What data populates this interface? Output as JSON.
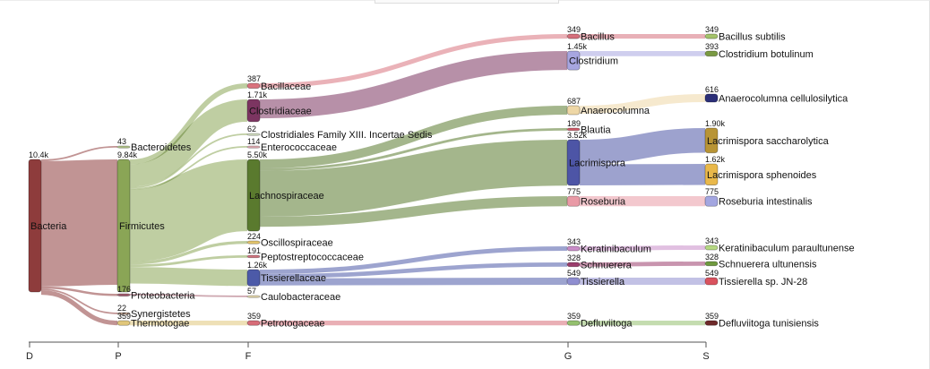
{
  "axis": {
    "ranks": [
      {
        "key": "D",
        "label": "D"
      },
      {
        "key": "P",
        "label": "P"
      },
      {
        "key": "F",
        "label": "F"
      },
      {
        "key": "G",
        "label": "G"
      },
      {
        "key": "S",
        "label": "S"
      }
    ]
  },
  "colors": {
    "Bacteria": "#8e3c3c",
    "Firmicutes": "#8aa556",
    "Bacteroidetes": "#b6c98d",
    "Proteobacteria": "#a45c6e",
    "Synergistetes": "#d9b8a4",
    "Thermotogae": "#e0c67a",
    "Bacillaceae": "#d9727d",
    "Clostridiaceae": "#7c3561",
    "ClostridialesXIII": "#d8e4c6",
    "Enterococcaceae": "#e7b0b6",
    "Lachnospiraceae": "#5a7a2e",
    "Oscillospiraceae": "#e3c56c",
    "Peptostreptococcaceae": "#d0747f",
    "Tissierellaceae": "#4c5aa8",
    "Caulobacteraceae": "#e8dbb0",
    "Petrotogaceae": "#d76d78",
    "Bacillus": "#d56f7b",
    "Clostridium": "#a7a6e0",
    "Anaerocolumna": "#eed7a6",
    "Blautia": "#cf5b69",
    "Lacrimispora": "#4d55a6",
    "Roseburia": "#e99aa6",
    "Keratinibaculum": "#c98cc8",
    "Schnuerera": "#9b3d6c",
    "Tissierella": "#8f8ed0",
    "Defluviitoga": "#94c06e",
    "Bacillus subtilis": "#a4c36a",
    "Clostridium botulinum": "#7a9a43",
    "Anaerocolumna cellulosilytica": "#2b2f78",
    "Lacrimispora saccharolytica": "#b89435",
    "Lacrimispora sphenoides": "#e9b84a",
    "Roseburia intestinalis": "#a3a6e0",
    "Keratinibaculum paraultunense": "#b6d883",
    "Schnuerera ultunensis": "#6f9a3e",
    "Tissierella sp. JN-28": "#d9525e",
    "Defluviitoga tunisiensis": "#6e2a2a"
  },
  "nodes": [
    {
      "id": "Bacteria",
      "label": "Bacteria",
      "value": "10.4k",
      "rank": "D"
    },
    {
      "id": "Bacteroidetes",
      "label": "Bacteroidetes",
      "value": "43",
      "rank": "P"
    },
    {
      "id": "Firmicutes",
      "label": "Firmicutes",
      "value": "9.84k",
      "rank": "P"
    },
    {
      "id": "Proteobacteria",
      "label": "Proteobacteria",
      "value": "176",
      "rank": "P"
    },
    {
      "id": "Synergistetes",
      "label": "Synergistetes",
      "value": "22",
      "rank": "P"
    },
    {
      "id": "Thermotogae",
      "label": "Thermotogae",
      "value": "359",
      "rank": "P"
    },
    {
      "id": "Bacillaceae",
      "label": "Bacillaceae",
      "value": "387",
      "rank": "F"
    },
    {
      "id": "Clostridiaceae",
      "label": "Clostridiaceae",
      "value": "1.71k",
      "rank": "F"
    },
    {
      "id": "ClostridialesXIII",
      "label": "Clostridiales Family XIII. Incertae Sedis",
      "value": "62",
      "rank": "F"
    },
    {
      "id": "Enterococcaceae",
      "label": "Enterococcaceae",
      "value": "114",
      "rank": "F"
    },
    {
      "id": "Lachnospiraceae",
      "label": "Lachnospiraceae",
      "value": "5.50k",
      "rank": "F"
    },
    {
      "id": "Oscillospiraceae",
      "label": "Oscillospiraceae",
      "value": "224",
      "rank": "F"
    },
    {
      "id": "Peptostreptococcaceae",
      "label": "Peptostreptococcaceae",
      "value": "191",
      "rank": "F"
    },
    {
      "id": "Tissierellaceae",
      "label": "Tissierellaceae",
      "value": "1.26k",
      "rank": "F"
    },
    {
      "id": "Caulobacteraceae",
      "label": "Caulobacteraceae",
      "value": "57",
      "rank": "F"
    },
    {
      "id": "Petrotogaceae",
      "label": "Petrotogaceae",
      "value": "359",
      "rank": "F"
    },
    {
      "id": "Bacillus",
      "label": "Bacillus",
      "value": "349",
      "rank": "G"
    },
    {
      "id": "Clostridium",
      "label": "Clostridium",
      "value": "1.45k",
      "rank": "G"
    },
    {
      "id": "Anaerocolumna",
      "label": "Anaerocolumna",
      "value": "687",
      "rank": "G"
    },
    {
      "id": "Blautia",
      "label": "Blautia",
      "value": "189",
      "rank": "G"
    },
    {
      "id": "Lacrimispora",
      "label": "Lacrimispora",
      "value": "3.52k",
      "rank": "G"
    },
    {
      "id": "Roseburia",
      "label": "Roseburia",
      "value": "775",
      "rank": "G"
    },
    {
      "id": "Keratinibaculum",
      "label": "Keratinibaculum",
      "value": "343",
      "rank": "G"
    },
    {
      "id": "Schnuerera",
      "label": "Schnuerera",
      "value": "328",
      "rank": "G"
    },
    {
      "id": "Tissierella",
      "label": "Tissierella",
      "value": "549",
      "rank": "G"
    },
    {
      "id": "Defluviitoga",
      "label": "Defluviitoga",
      "value": "359",
      "rank": "G"
    },
    {
      "id": "Bacillus subtilis",
      "label": "Bacillus subtilis",
      "value": "349",
      "rank": "S"
    },
    {
      "id": "Clostridium botulinum",
      "label": "Clostridium botulinum",
      "value": "393",
      "rank": "S"
    },
    {
      "id": "Anaerocolumna cellulosilytica",
      "label": "Anaerocolumna cellulosilytica",
      "value": "616",
      "rank": "S"
    },
    {
      "id": "Lacrimispora saccharolytica",
      "label": "Lacrimispora saccharolytica",
      "value": "1.90k",
      "rank": "S"
    },
    {
      "id": "Lacrimispora sphenoides",
      "label": "Lacrimispora sphenoides",
      "value": "1.62k",
      "rank": "S"
    },
    {
      "id": "Roseburia intestinalis",
      "label": "Roseburia intestinalis",
      "value": "775",
      "rank": "S"
    },
    {
      "id": "Keratinibaculum paraultunense",
      "label": "Keratinibaculum paraultunense",
      "value": "343",
      "rank": "S"
    },
    {
      "id": "Schnuerera ultunensis",
      "label": "Schnuerera ultunensis",
      "value": "328",
      "rank": "S"
    },
    {
      "id": "Tissierella sp. JN-28",
      "label": "Tissierella sp. JN-28",
      "value": "549",
      "rank": "S"
    },
    {
      "id": "Defluviitoga tunisiensis",
      "label": "Defluviitoga tunisiensis",
      "value": "359",
      "rank": "S"
    }
  ],
  "links": [
    {
      "source": "Bacteria",
      "target": "Bacteroidetes",
      "value": 43
    },
    {
      "source": "Bacteria",
      "target": "Firmicutes",
      "value": 9840
    },
    {
      "source": "Bacteria",
      "target": "Proteobacteria",
      "value": 176
    },
    {
      "source": "Bacteria",
      "target": "Synergistetes",
      "value": 22
    },
    {
      "source": "Bacteria",
      "target": "Thermotogae",
      "value": 359
    },
    {
      "source": "Firmicutes",
      "target": "Bacillaceae",
      "value": 387
    },
    {
      "source": "Firmicutes",
      "target": "Clostridiaceae",
      "value": 1710
    },
    {
      "source": "Firmicutes",
      "target": "ClostridialesXIII",
      "value": 62
    },
    {
      "source": "Firmicutes",
      "target": "Enterococcaceae",
      "value": 114
    },
    {
      "source": "Firmicutes",
      "target": "Lachnospiraceae",
      "value": 5500
    },
    {
      "source": "Firmicutes",
      "target": "Oscillospiraceae",
      "value": 224
    },
    {
      "source": "Firmicutes",
      "target": "Peptostreptococcaceae",
      "value": 191
    },
    {
      "source": "Firmicutes",
      "target": "Tissierellaceae",
      "value": 1260
    },
    {
      "source": "Proteobacteria",
      "target": "Caulobacteraceae",
      "value": 57
    },
    {
      "source": "Thermotogae",
      "target": "Petrotogaceae",
      "value": 359
    },
    {
      "source": "Bacillaceae",
      "target": "Bacillus",
      "value": 349
    },
    {
      "source": "Clostridiaceae",
      "target": "Clostridium",
      "value": 1450
    },
    {
      "source": "Lachnospiraceae",
      "target": "Anaerocolumna",
      "value": 687
    },
    {
      "source": "Lachnospiraceae",
      "target": "Blautia",
      "value": 189
    },
    {
      "source": "Lachnospiraceae",
      "target": "Lacrimispora",
      "value": 3520
    },
    {
      "source": "Lachnospiraceae",
      "target": "Roseburia",
      "value": 775
    },
    {
      "source": "Tissierellaceae",
      "target": "Keratinibaculum",
      "value": 343
    },
    {
      "source": "Tissierellaceae",
      "target": "Schnuerera",
      "value": 328
    },
    {
      "source": "Tissierellaceae",
      "target": "Tissierella",
      "value": 549
    },
    {
      "source": "Petrotogaceae",
      "target": "Defluviitoga",
      "value": 359
    },
    {
      "source": "Bacillus",
      "target": "Bacillus subtilis",
      "value": 349
    },
    {
      "source": "Clostridium",
      "target": "Clostridium botulinum",
      "value": 393
    },
    {
      "source": "Anaerocolumna",
      "target": "Anaerocolumna cellulosilytica",
      "value": 616
    },
    {
      "source": "Lacrimispora",
      "target": "Lacrimispora saccharolytica",
      "value": 1900
    },
    {
      "source": "Lacrimispora",
      "target": "Lacrimispora sphenoides",
      "value": 1620
    },
    {
      "source": "Roseburia",
      "target": "Roseburia intestinalis",
      "value": 775
    },
    {
      "source": "Keratinibaculum",
      "target": "Keratinibaculum paraultunense",
      "value": 343
    },
    {
      "source": "Schnuerera",
      "target": "Schnuerera ultunensis",
      "value": 328
    },
    {
      "source": "Tissierella",
      "target": "Tissierella sp. JN-28",
      "value": 549
    },
    {
      "source": "Defluviitoga",
      "target": "Defluviitoga tunisiensis",
      "value": 359
    }
  ]
}
